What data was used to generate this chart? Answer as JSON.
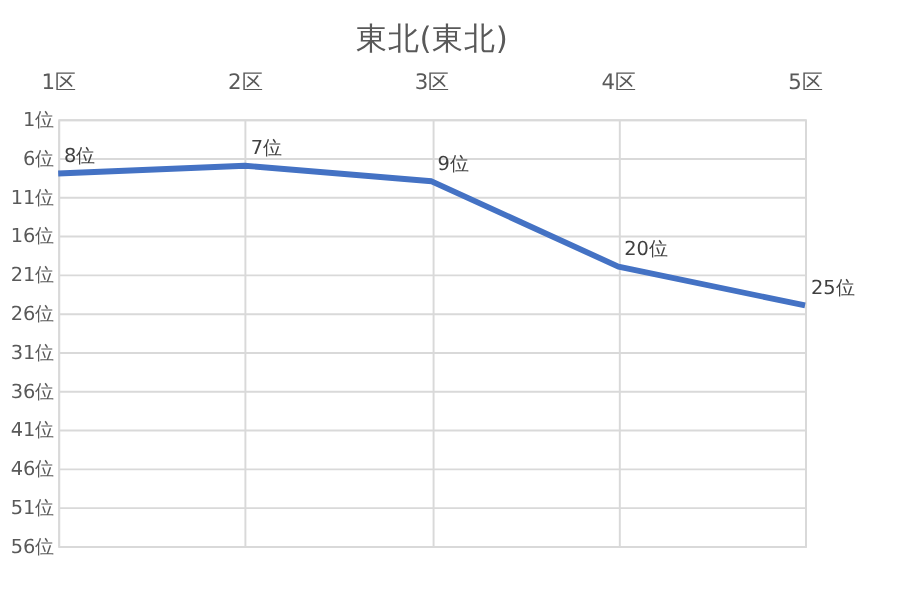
{
  "chart_data": {
    "type": "line",
    "title": "東北(東北)",
    "categories": [
      "1区",
      "2区",
      "3区",
      "4区",
      "5区"
    ],
    "series": [
      {
        "color": "#4472c4",
        "values": [
          8,
          7,
          9,
          20,
          25
        ],
        "value_labels": [
          "8位",
          "7位",
          "9位",
          "20位",
          "25位"
        ]
      }
    ],
    "ylim": [
      56,
      1
    ],
    "yticks": [
      {
        "value": 1,
        "label": "1位"
      },
      {
        "value": 6,
        "label": "6位"
      },
      {
        "value": 11,
        "label": "11位"
      },
      {
        "value": 16,
        "label": "16位"
      },
      {
        "value": 21,
        "label": "21位"
      },
      {
        "value": 26,
        "label": "26位"
      },
      {
        "value": 31,
        "label": "31位"
      },
      {
        "value": 36,
        "label": "36位"
      },
      {
        "value": 41,
        "label": "41位"
      },
      {
        "value": 46,
        "label": "46位"
      },
      {
        "value": 51,
        "label": "51位"
      },
      {
        "value": 56,
        "label": "56位"
      }
    ],
    "grid": true,
    "marker": "none",
    "line_style": "solid"
  }
}
